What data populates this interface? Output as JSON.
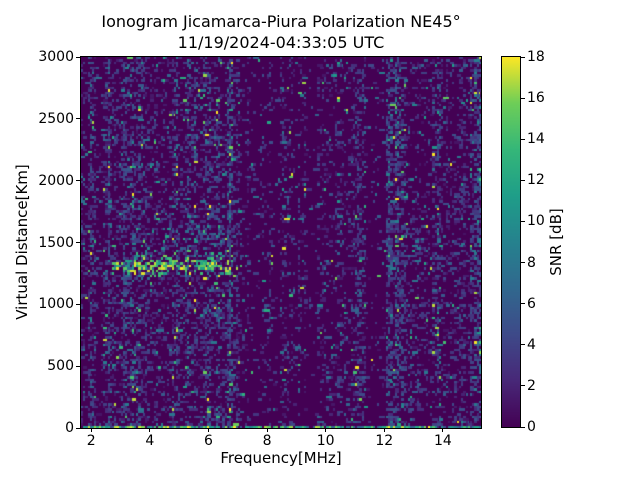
{
  "figure": {
    "background": "#ffffff",
    "text_color": "#000000"
  },
  "chart_data": {
    "type": "heatmap",
    "title": "Ionogram Jicamarca-Piura Polarization NE45°",
    "subtitle": "11/19/2024-04:33:05 UTC",
    "xlabel": "Frequency[MHz]",
    "ylabel": "Virtual Distance[Km]",
    "colorbar_label": "SNR [dB]",
    "x_range": [
      1.65,
      15.3
    ],
    "y_range": [
      0,
      3000
    ],
    "snr_range": [
      0,
      18
    ],
    "x_ticks": [
      2,
      4,
      6,
      8,
      10,
      12,
      14
    ],
    "y_ticks": [
      0,
      500,
      1000,
      1500,
      2000,
      2500,
      3000
    ],
    "colorbar_ticks": [
      0,
      2,
      4,
      6,
      8,
      10,
      12,
      14,
      16,
      18
    ],
    "colormap": "viridis",
    "colormap_stops": [
      "#440154",
      "#482878",
      "#3e4a89",
      "#31688e",
      "#26828e",
      "#1f9e89",
      "#35b779",
      "#6ece58",
      "#fde725"
    ],
    "grid": {
      "cols": 181,
      "rows": 150,
      "seed": 7
    },
    "noise_profile": [
      {
        "f": [
          1.65,
          2.2
        ],
        "density": 0.3
      },
      {
        "f": [
          2.2,
          2.42
        ],
        "density": 0.1
      },
      {
        "f": [
          2.42,
          2.6
        ],
        "density": 0.52
      },
      {
        "f": [
          2.6,
          3.0
        ],
        "density": 0.32
      },
      {
        "f": [
          3.0,
          3.18
        ],
        "density": 0.48
      },
      {
        "f": [
          3.18,
          6.55
        ],
        "density": 0.34
      },
      {
        "f": [
          6.55,
          6.82
        ],
        "density": 0.46
      },
      {
        "f": [
          6.82,
          7.05
        ],
        "density": 0.24
      },
      {
        "f": [
          7.05,
          8.4
        ],
        "density": 0.08
      },
      {
        "f": [
          8.4,
          9.35
        ],
        "density": 0.17
      },
      {
        "f": [
          9.35,
          9.75
        ],
        "density": 0.04
      },
      {
        "f": [
          9.75,
          10.75
        ],
        "density": 0.18
      },
      {
        "f": [
          10.75,
          11.35
        ],
        "density": 0.3
      },
      {
        "f": [
          11.35,
          12.05
        ],
        "density": 0.06
      },
      {
        "f": [
          12.05,
          12.75
        ],
        "density": 0.48
      },
      {
        "f": [
          12.75,
          13.65
        ],
        "density": 0.18
      },
      {
        "f": [
          13.65,
          14.05
        ],
        "density": 0.33
      },
      {
        "f": [
          14.05,
          14.9
        ],
        "density": 0.22
      },
      {
        "f": [
          14.9,
          15.3
        ],
        "density": 0.4
      }
    ],
    "echo_trace": {
      "f_range": [
        2.7,
        7.15
      ],
      "vd_center": 1310,
      "vd_sigma": 65,
      "strength_points": [
        [
          2.7,
          0.22
        ],
        [
          3.3,
          0.52
        ],
        [
          4.2,
          0.65
        ],
        [
          5.6,
          0.65
        ],
        [
          6.5,
          0.42
        ],
        [
          7.15,
          0.18
        ]
      ],
      "spread_f_range": [
        3.2,
        6.8
      ],
      "spread_vd_range": [
        1380,
        1620
      ],
      "spread_density": 0.08
    },
    "ground_echo": {
      "vd_max": 30,
      "density": 0.75
    },
    "render_hints": {
      "streak_prob": 0.05,
      "streak_boost": 0.15
    }
  }
}
